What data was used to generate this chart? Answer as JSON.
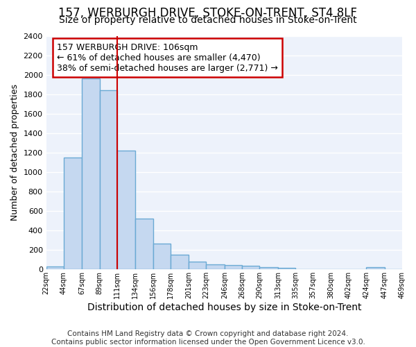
{
  "title": "157, WERBURGH DRIVE, STOKE-ON-TRENT, ST4 8LF",
  "subtitle": "Size of property relative to detached houses in Stoke-on-Trent",
  "xlabel": "Distribution of detached houses by size in Stoke-on-Trent",
  "ylabel": "Number of detached properties",
  "bin_edges": [
    22,
    44,
    67,
    89,
    111,
    134,
    156,
    178,
    201,
    223,
    246,
    268,
    290,
    313,
    335,
    357,
    380,
    402,
    424,
    447,
    469
  ],
  "bar_heights": [
    30,
    1150,
    1960,
    1840,
    1220,
    520,
    265,
    150,
    80,
    50,
    45,
    40,
    20,
    18,
    5,
    5,
    3,
    3,
    20,
    3
  ],
  "bar_color": "#c5d8f0",
  "bar_edge_color": "#6aaad4",
  "bar_edge_width": 1.0,
  "red_line_x": 111,
  "red_line_color": "#cc0000",
  "annotation_text": "157 WERBURGH DRIVE: 106sqm\n← 61% of detached houses are smaller (4,470)\n38% of semi-detached houses are larger (2,771) →",
  "annotation_box_color": "#cc0000",
  "ylim": [
    0,
    2400
  ],
  "xlim": [
    22,
    469
  ],
  "yticks": [
    0,
    200,
    400,
    600,
    800,
    1000,
    1200,
    1400,
    1600,
    1800,
    2000,
    2200,
    2400
  ],
  "tick_labels": [
    "22sqm",
    "44sqm",
    "67sqm",
    "89sqm",
    "111sqm",
    "134sqm",
    "156sqm",
    "178sqm",
    "201sqm",
    "223sqm",
    "246sqm",
    "268sqm",
    "290sqm",
    "313sqm",
    "335sqm",
    "357sqm",
    "380sqm",
    "402sqm",
    "424sqm",
    "447sqm",
    "469sqm"
  ],
  "background_color": "#edf2fb",
  "grid_color": "#ffffff",
  "footer_text": "Contains HM Land Registry data © Crown copyright and database right 2024.\nContains public sector information licensed under the Open Government Licence v3.0.",
  "title_fontsize": 12,
  "subtitle_fontsize": 10,
  "ylabel_fontsize": 9,
  "xlabel_fontsize": 10,
  "footer_fontsize": 7.5,
  "annotation_fontsize": 9
}
